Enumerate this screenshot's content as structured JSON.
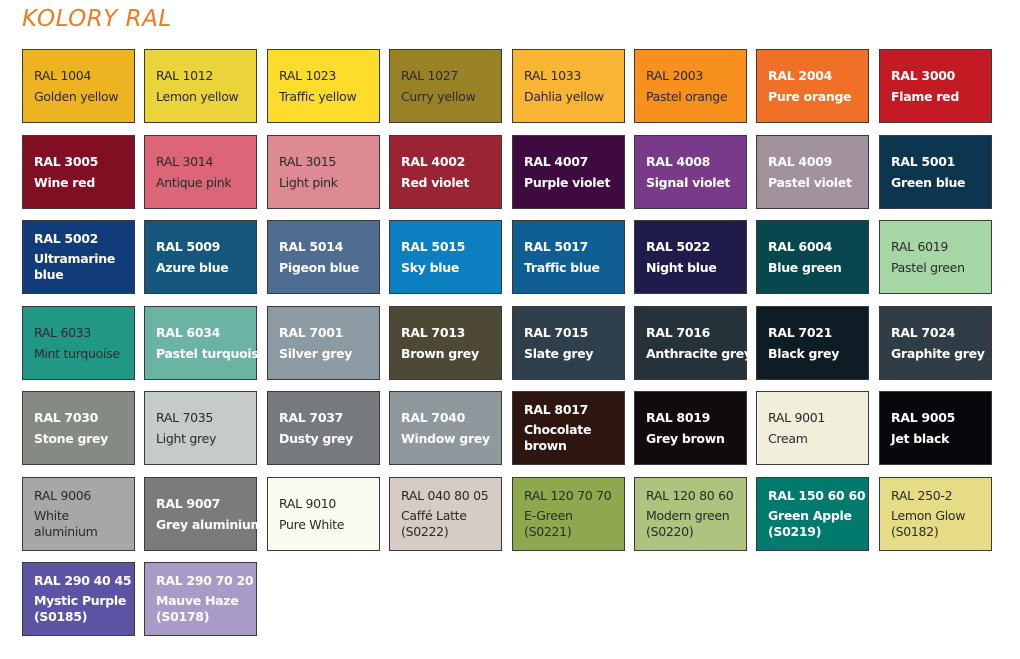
{
  "title": "KOLORY RAL",
  "swatches": [
    {
      "code": "RAL 1004",
      "name": [
        "Golden yellow"
      ],
      "color": "#eeb320",
      "text": "light"
    },
    {
      "code": "RAL 1012",
      "name": [
        "Lemon yellow"
      ],
      "color": "#ebd43a",
      "text": "light"
    },
    {
      "code": "RAL 1023",
      "name": [
        "Traffic yellow"
      ],
      "color": "#fddc2c",
      "text": "light"
    },
    {
      "code": "RAL 1027",
      "name": [
        "Curry yellow"
      ],
      "color": "#998225",
      "text": "light"
    },
    {
      "code": "RAL 1033",
      "name": [
        "Dahlia yellow"
      ],
      "color": "#fbb535",
      "text": "light"
    },
    {
      "code": "RAL 2003",
      "name": [
        "Pastel orange"
      ],
      "color": "#f7901d",
      "text": "light"
    },
    {
      "code": "RAL 2004",
      "name": [
        "Pure orange"
      ],
      "color": "#ef7026",
      "text": "dark"
    },
    {
      "code": "RAL 3000",
      "name": [
        "Flame red"
      ],
      "color": "#c41a23",
      "text": "dark"
    },
    {
      "code": "RAL 3005",
      "name": [
        "Wine red"
      ],
      "color": "#820e23",
      "text": "dark"
    },
    {
      "code": "RAL 3014",
      "name": [
        "Antique pink"
      ],
      "color": "#dc6678",
      "text": "light"
    },
    {
      "code": "RAL 3015",
      "name": [
        "Light pink"
      ],
      "color": "#de8a93",
      "text": "light"
    },
    {
      "code": "RAL 4002",
      "name": [
        "Red violet"
      ],
      "color": "#9b2434",
      "text": "dark"
    },
    {
      "code": "RAL 4007",
      "name": [
        "Purple violet"
      ],
      "color": "#3e0a3f",
      "text": "dark"
    },
    {
      "code": "RAL 4008",
      "name": [
        "Signal violet"
      ],
      "color": "#7a3a8a",
      "text": "dark"
    },
    {
      "code": "RAL 4009",
      "name": [
        "Pastel violet"
      ],
      "color": "#a2929b",
      "text": "dark"
    },
    {
      "code": "RAL 5001",
      "name": [
        "Green blue"
      ],
      "color": "#0c3550",
      "text": "dark"
    },
    {
      "code": "RAL 5002",
      "name": [
        "Ultramarine",
        "blue"
      ],
      "color": "#123b79",
      "text": "dark"
    },
    {
      "code": "RAL 5009",
      "name": [
        "Azure blue"
      ],
      "color": "#16587d",
      "text": "dark"
    },
    {
      "code": "RAL 5014",
      "name": [
        "Pigeon blue"
      ],
      "color": "#4e6d91",
      "text": "dark"
    },
    {
      "code": "RAL 5015",
      "name": [
        "Sky blue"
      ],
      "color": "#0b7fc0",
      "text": "dark"
    },
    {
      "code": "RAL 5017",
      "name": [
        "Traffic blue"
      ],
      "color": "#105f94",
      "text": "dark"
    },
    {
      "code": "RAL 5022",
      "name": [
        "Night blue"
      ],
      "color": "#1f1c4c",
      "text": "dark"
    },
    {
      "code": "RAL 6004",
      "name": [
        "Blue green"
      ],
      "color": "#08474d",
      "text": "dark"
    },
    {
      "code": "RAL 6019",
      "name": [
        "Pastel green"
      ],
      "color": "#a7d6a6",
      "text": "light"
    },
    {
      "code": "RAL 6033",
      "name": [
        "Mint turquoise"
      ],
      "color": "#219886",
      "text": "light"
    },
    {
      "code": "RAL 6034",
      "name": [
        "Pastel turquoise"
      ],
      "color": "#6bb3a2",
      "text": "dark"
    },
    {
      "code": "RAL 7001",
      "name": [
        "Silver grey"
      ],
      "color": "#8c9aa4",
      "text": "dark"
    },
    {
      "code": "RAL 7013",
      "name": [
        "Brown grey"
      ],
      "color": "#4e4934",
      "text": "dark"
    },
    {
      "code": "RAL 7015",
      "name": [
        "Slate grey"
      ],
      "color": "#2f3f4b",
      "text": "dark"
    },
    {
      "code": "RAL 7016",
      "name": [
        "Anthracite grey"
      ],
      "color": "#263239",
      "text": "dark"
    },
    {
      "code": "RAL 7021",
      "name": [
        "Black grey"
      ],
      "color": "#0e1c25",
      "text": "dark"
    },
    {
      "code": "RAL 7024",
      "name": [
        "Graphite grey"
      ],
      "color": "#313d46",
      "text": "dark"
    },
    {
      "code": "RAL 7030",
      "name": [
        "Stone grey"
      ],
      "color": "#858a83",
      "text": "dark"
    },
    {
      "code": "RAL 7035",
      "name": [
        "Light grey"
      ],
      "color": "#c5cbc7",
      "text": "light"
    },
    {
      "code": "RAL 7037",
      "name": [
        "Dusty grey"
      ],
      "color": "#777b7f",
      "text": "dark"
    },
    {
      "code": "RAL 7040",
      "name": [
        "Window grey"
      ],
      "color": "#8e989d",
      "text": "dark"
    },
    {
      "code": "RAL 8017",
      "name": [
        "Chocolate",
        "brown"
      ],
      "color": "#2e1510",
      "text": "dark"
    },
    {
      "code": "RAL 8019",
      "name": [
        "Grey brown"
      ],
      "color": "#110a0f",
      "text": "dark"
    },
    {
      "code": "RAL 9001",
      "name": [
        "Cream"
      ],
      "color": "#f1eedb",
      "text": "light"
    },
    {
      "code": "RAL 9005",
      "name": [
        "Jet black"
      ],
      "color": "#05070b",
      "text": "dark"
    },
    {
      "code": "RAL 9006",
      "name": [
        "White",
        "aluminium"
      ],
      "color": "#a5a7a9",
      "text": "light"
    },
    {
      "code": "RAL 9007",
      "name": [
        "Grey aluminium"
      ],
      "color": "#7b7b7d",
      "text": "dark"
    },
    {
      "code": "RAL 9010",
      "name": [
        "Pure White"
      ],
      "color": "#fbfbf1",
      "text": "light"
    },
    {
      "code": "RAL 040 80 05",
      "name": [
        "Caffé Latte",
        "(S0222)"
      ],
      "color": "#d6cbc5",
      "text": "light"
    },
    {
      "code": "RAL 120 70 70",
      "name": [
        "E-Green",
        "(S0221)"
      ],
      "color": "#8fa84e",
      "text": "light"
    },
    {
      "code": "RAL 120 80 60",
      "name": [
        "Modern green",
        "(S0220)"
      ],
      "color": "#aec37e",
      "text": "light"
    },
    {
      "code": "RAL 150 60 60",
      "name": [
        "Green Apple",
        "(S0219)"
      ],
      "color": "#007a6c",
      "text": "dark"
    },
    {
      "code": "RAL 250-2",
      "name": [
        "Lemon Glow",
        "(S0182)"
      ],
      "color": "#e6dc86",
      "text": "light"
    },
    {
      "code": "RAL 290 40 45",
      "name": [
        "Mystic Purple",
        "(S0185)"
      ],
      "color": "#5b54a4",
      "text": "dark"
    },
    {
      "code": "RAL 290 70 20",
      "name": [
        "Mauve Haze",
        "(S0178)"
      ],
      "color": "#a79cc8",
      "text": "dark"
    }
  ]
}
